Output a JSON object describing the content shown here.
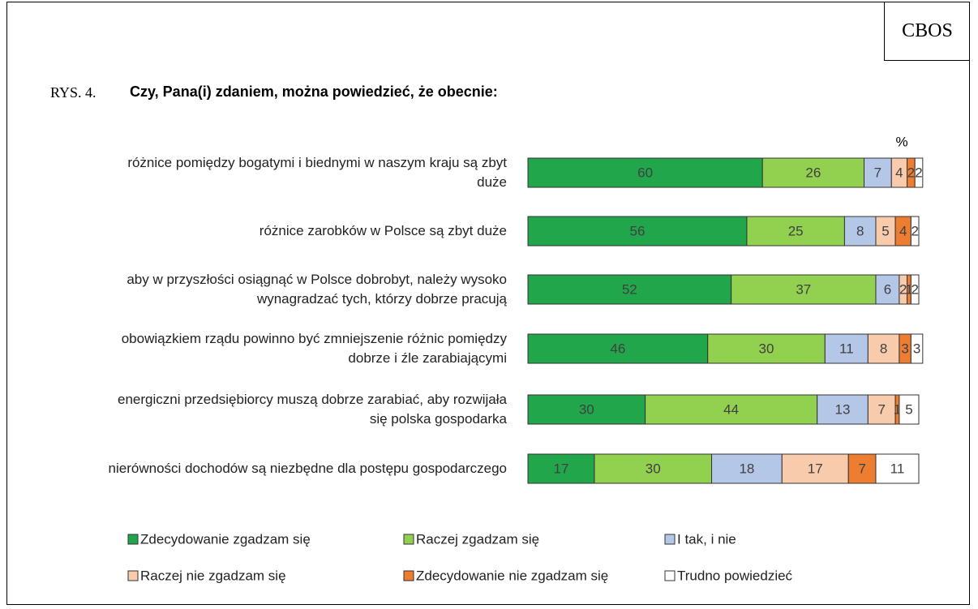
{
  "chart_data": {
    "type": "stacked_barh",
    "source": "CBOS",
    "figure_label": "RYS. 4.",
    "title": "Czy, Pana(i) zdaniem, można powiedzieć, że obecnie:",
    "unit_label": "%",
    "categories": [
      "różnice pomiędzy bogatymi i biednymi w naszym kraju są zbyt duże",
      "różnice zarobków w Polsce są zbyt duże",
      "aby w przyszłości osiągnąć w Polsce dobrobyt, należy wysoko wynagradzać tych, którzy dobrze pracują",
      "obowiązkiem rządu powinno być zmniejszenie różnic pomiędzy dobrze i źle zarabiającymi",
      "energiczni przedsiębiorcy muszą dobrze zarabiać, aby rozwijała się polska gospodarka",
      "nierówności dochodów są niezbędne dla postępu gospodarczego"
    ],
    "series": [
      {
        "name": "Zdecydowanie zgadzam się",
        "color": "#21a64b",
        "values": [
          60,
          56,
          52,
          46,
          30,
          17
        ]
      },
      {
        "name": "Raczej zgadzam się",
        "color": "#92d050",
        "values": [
          26,
          25,
          37,
          30,
          44,
          30
        ]
      },
      {
        "name": "I tak, i nie",
        "color": "#b4c7e7",
        "values": [
          7,
          8,
          6,
          11,
          13,
          18
        ]
      },
      {
        "name": "Raczej nie zgadzam się",
        "color": "#f8cbad",
        "values": [
          4,
          5,
          2,
          8,
          7,
          17
        ]
      },
      {
        "name": "Zdecydowanie nie zgadzam się",
        "color": "#ed7d31",
        "values": [
          2,
          4,
          1,
          3,
          1,
          7
        ]
      },
      {
        "name": "Trudno powiedzieć",
        "color": "#ffffff",
        "values": [
          2,
          2,
          2,
          3,
          5,
          11
        ]
      }
    ]
  }
}
